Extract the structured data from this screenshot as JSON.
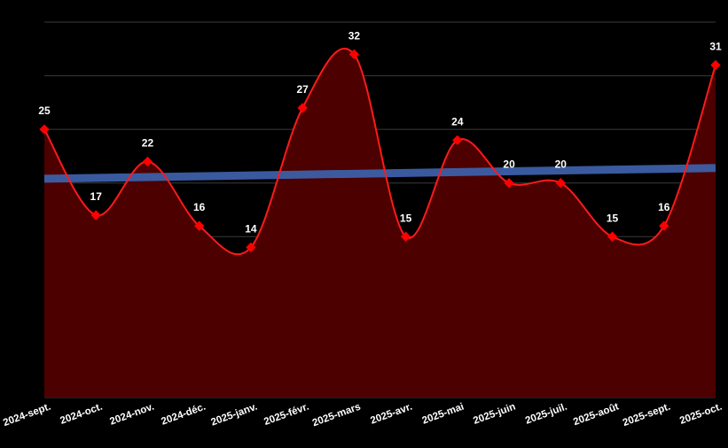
{
  "chart_data": {
    "type": "area",
    "categories": [
      "2024-sept.",
      "2024-oct.",
      "2024-nov.",
      "2024-déc.",
      "2025-janv.",
      "2025-févr.",
      "2025-mars",
      "2025-avr.",
      "2025-mai",
      "2025-juin",
      "2025-juil.",
      "2025-août",
      "2025-sept.",
      "2025-oct."
    ],
    "values": [
      25,
      17,
      22,
      16,
      14,
      27,
      32,
      15,
      24,
      20,
      20,
      15,
      16,
      31
    ],
    "trendline": {
      "start": 20.4,
      "end": 21.4
    },
    "ylim": [
      0,
      35
    ],
    "grid": true,
    "colors": {
      "line": "#ff1a1a",
      "marker": "#ff0000",
      "fill": "#4d0000",
      "trend": "#3d5fa8",
      "grid": "#3a3a3a",
      "text": "#ffffff"
    }
  }
}
